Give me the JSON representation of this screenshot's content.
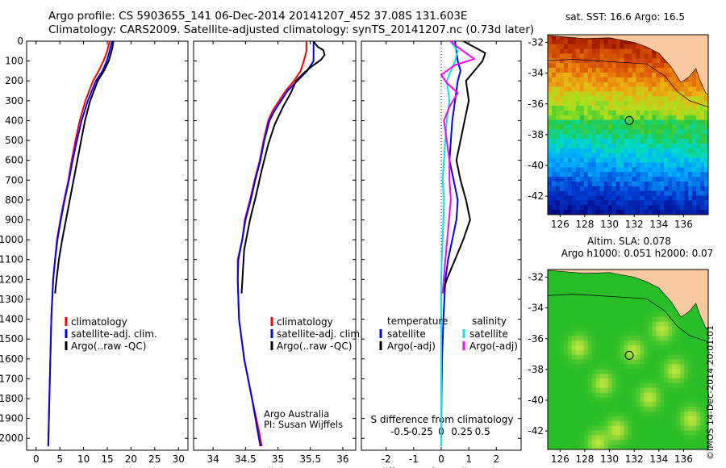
{
  "header": {
    "line1": "Argo profile: CS 5903655_141 06-Dec-2014 20141207_452 37.08S 131.603E",
    "line2": "Climatology: CARS2009. Satellite-adjusted climatology: synTS_20141207.nc (0.73d later)"
  },
  "chart_data": [
    {
      "type": "line",
      "id": "temperature",
      "xlabel": "temperature (deg C)",
      "xlim": [
        -2,
        32
      ],
      "ylim": [
        0,
        2060
      ],
      "yticks": [
        0,
        100,
        200,
        300,
        400,
        500,
        600,
        700,
        800,
        900,
        1000,
        1100,
        1200,
        1300,
        1400,
        1500,
        1600,
        1700,
        1800,
        1900,
        2000
      ],
      "xticks": [
        {
          "v": 0,
          "label": "0"
        },
        {
          "v": 5,
          "label": "5"
        },
        {
          "v": 10,
          "label": "10"
        },
        {
          "v": 15,
          "label": "15"
        },
        {
          "v": 20,
          "label": "20"
        },
        {
          "v": 25,
          "label": "25"
        },
        {
          "v": 30,
          "label": "30"
        }
      ],
      "series": [
        {
          "name": "climatology",
          "color": "#ff0000",
          "x": [
            15.5,
            15.0,
            14.2,
            13.2,
            12.0,
            10.4,
            9.2,
            8.3,
            7.5,
            6.8,
            5.9,
            5.1,
            4.4,
            4.0,
            3.6,
            3.2,
            3.0,
            2.8,
            2.55
          ],
          "depth": [
            0,
            50,
            100,
            150,
            200,
            300,
            400,
            500,
            600,
            700,
            800,
            900,
            1000,
            1100,
            1200,
            1400,
            1600,
            1800,
            2040
          ]
        },
        {
          "name": "satellite-adj. clim.",
          "color": "#0000ff",
          "x": [
            16.0,
            15.5,
            14.9,
            14.0,
            12.6,
            10.9,
            9.6,
            8.6,
            7.7,
            6.9,
            6.0,
            5.2,
            4.5,
            4.0,
            3.6,
            3.2,
            3.0,
            2.8,
            2.55
          ],
          "depth": [
            0,
            50,
            100,
            150,
            200,
            300,
            400,
            500,
            600,
            700,
            800,
            900,
            1000,
            1100,
            1200,
            1400,
            1600,
            1800,
            2040
          ]
        },
        {
          "name": "Argo(..raw -QC)",
          "color": "#000000",
          "x": [
            16.3,
            16.1,
            15.8,
            15.3,
            14.3,
            13.0,
            11.4,
            10.3,
            9.5,
            8.7,
            7.9,
            7.1,
            6.3,
            5.5,
            4.8,
            4.3,
            4.0
          ],
          "depth": [
            0,
            30,
            60,
            100,
            150,
            200,
            300,
            400,
            500,
            600,
            700,
            800,
            900,
            1000,
            1100,
            1200,
            1270
          ]
        }
      ],
      "legend": [
        "climatology",
        "satellite-adj. clim.",
        "Argo(..raw -QC)"
      ]
    },
    {
      "type": "line",
      "id": "salinity",
      "xlabel": "salinity",
      "xlim": [
        33.7,
        36.2
      ],
      "ylim": [
        0,
        2060
      ],
      "xticks": [
        {
          "v": 34,
          "label": "34"
        },
        {
          "v": 34.5,
          "label": "34.5"
        },
        {
          "v": 35,
          "label": "35"
        },
        {
          "v": 35.5,
          "label": "35.5"
        },
        {
          "v": 36,
          "label": "36"
        }
      ],
      "series": [
        {
          "name": "climatology",
          "color": "#ff0000",
          "x": [
            35.44,
            35.44,
            35.4,
            35.35,
            35.25,
            35.12,
            35.02,
            34.92,
            34.85,
            34.78,
            34.72,
            34.64,
            34.57,
            34.49,
            34.45,
            34.38,
            34.38,
            34.4,
            34.48,
            34.6,
            34.7,
            34.75
          ],
          "depth": [
            0,
            50,
            100,
            150,
            200,
            250,
            300,
            350,
            400,
            500,
            600,
            700,
            800,
            900,
            1000,
            1100,
            1200,
            1400,
            1600,
            1800,
            1950,
            2040
          ]
        },
        {
          "name": "satellite-adj. clim.",
          "color": "#0000ff",
          "x": [
            35.55,
            35.55,
            35.55,
            35.45,
            35.3,
            35.15,
            35.05,
            34.95,
            34.87,
            34.79,
            34.73,
            34.65,
            34.58,
            34.5,
            34.45,
            34.39,
            34.38,
            34.4,
            34.48,
            34.6,
            34.68,
            34.73
          ],
          "depth": [
            0,
            50,
            100,
            150,
            200,
            250,
            300,
            350,
            400,
            500,
            600,
            700,
            800,
            900,
            1000,
            1100,
            1200,
            1400,
            1600,
            1800,
            1950,
            2040
          ]
        },
        {
          "name": "Argo(..raw -QC)",
          "color": "#000000",
          "x": [
            35.55,
            35.58,
            35.62,
            35.7,
            35.72,
            35.66,
            35.55,
            35.4,
            35.28,
            35.2,
            35.08,
            34.95,
            34.85,
            34.75,
            34.66,
            34.57,
            34.48,
            34.44
          ],
          "depth": [
            0,
            15,
            30,
            45,
            70,
            95,
            120,
            160,
            200,
            260,
            330,
            420,
            520,
            650,
            780,
            900,
            1050,
            1270
          ]
        }
      ],
      "legend": [
        "climatology",
        "satellite-adj. clim.",
        "Argo(..raw -QC)"
      ],
      "annotations": [
        "Argo Australia",
        "PI: Susan Wijffels"
      ]
    },
    {
      "type": "line",
      "id": "difference",
      "xlabel": "T difference from climatology",
      "xlabel_top": "S difference from climatology",
      "xlim": [
        -2.9,
        2.9
      ],
      "ylim": [
        0,
        2060
      ],
      "xticks": [
        {
          "v": -2,
          "label": "-2"
        },
        {
          "v": -1,
          "label": "-1"
        },
        {
          "v": 0,
          "label": "0"
        },
        {
          "v": 1,
          "label": "1"
        },
        {
          "v": 2,
          "label": "2"
        }
      ],
      "s_ticks": [
        {
          "v": -1.5,
          "label": "-0.5"
        },
        {
          "v": -0.75,
          "label": "-0.25"
        },
        {
          "v": 0,
          "label": "0"
        },
        {
          "v": 0.75,
          "label": "0.25"
        },
        {
          "v": 1.5,
          "label": "0.5"
        }
      ],
      "series": [
        {
          "name": "temperature satellite",
          "color": "#0000ff",
          "x": [
            0.5,
            0.55,
            0.6,
            0.7,
            0.6,
            0.5,
            0.4,
            0.35,
            0.3,
            0.45,
            0.6,
            0.55,
            0.4,
            0.25,
            0.15,
            0.08,
            0.03,
            0.01,
            0.0
          ],
          "depth": [
            0,
            50,
            100,
            150,
            200,
            300,
            400,
            500,
            600,
            700,
            800,
            900,
            1000,
            1100,
            1200,
            1400,
            1600,
            1800,
            2040
          ]
        },
        {
          "name": "temperature Argo(-adj)",
          "color": "#000000",
          "x": [
            0.8,
            1.2,
            1.6,
            1.5,
            1.2,
            0.9,
            1.0,
            0.85,
            0.7,
            0.55,
            0.7,
            0.9,
            1.05,
            0.8,
            0.5,
            0.2,
            0.05
          ],
          "depth": [
            0,
            30,
            60,
            100,
            150,
            200,
            300,
            400,
            500,
            600,
            700,
            800,
            900,
            1000,
            1100,
            1200,
            1270
          ]
        },
        {
          "name": "salinity satellite",
          "color": "#00e5ee",
          "x": [
            0.33,
            0.6,
            0.5,
            0.35,
            0.2,
            0.3,
            0.2,
            0.15,
            0.1,
            0.05,
            0.1,
            0.08,
            0.05,
            0.02,
            0.0,
            0.0,
            0.0
          ],
          "depth": [
            0,
            50,
            100,
            150,
            200,
            300,
            400,
            500,
            600,
            700,
            800,
            900,
            1000,
            1100,
            1200,
            1600,
            2040
          ]
        },
        {
          "name": "salinity Argo(-adj)",
          "color": "#ff00ff",
          "x": [
            0.33,
            0.6,
            0.9,
            1.2,
            0.5,
            0.0,
            0.2,
            0.6,
            0.3,
            0.1,
            0.2,
            0.3,
            0.3,
            0.35,
            0.25,
            0.15,
            0.05
          ],
          "depth": [
            0,
            30,
            60,
            90,
            120,
            170,
            210,
            260,
            330,
            400,
            500,
            600,
            700,
            800,
            950,
            1100,
            1270
          ]
        }
      ],
      "legend": {
        "temperature": [
          "temperature",
          "satellite",
          "Argo(-adj)"
        ],
        "salinity": [
          "salinity",
          "satellite",
          "Argo(-adj)"
        ]
      }
    },
    {
      "type": "heatmap",
      "id": "sst_map",
      "title": "sat. SST: 16.6  Argo: 16.5",
      "xticks": [
        "126",
        "128",
        "130",
        "132",
        "134",
        "136"
      ],
      "yticks": [
        "-32",
        "-34",
        "-36",
        "-38",
        "-40",
        "-42"
      ],
      "xlim": [
        125,
        138
      ],
      "ylim": [
        -43.2,
        -31.5
      ],
      "marker": {
        "lon": 131.6,
        "lat": -37.08
      }
    },
    {
      "type": "heatmap",
      "id": "sla_map",
      "title_line1": "Altim. SLA: 0.078",
      "title_line2": "Argo h1000: 0.051  h2000: 0.07",
      "xticks": [
        "126",
        "128",
        "130",
        "132",
        "134",
        "136"
      ],
      "yticks": [
        "-32",
        "-34",
        "-36",
        "-38",
        "-40",
        "-42"
      ],
      "xlim": [
        125,
        138
      ],
      "ylim": [
        -43.2,
        -31.5
      ],
      "marker": {
        "lon": 131.6,
        "lat": -37.08
      }
    }
  ],
  "footer": {
    "stamp": "©IMOS 14-Dec-2014 20:01:01"
  }
}
